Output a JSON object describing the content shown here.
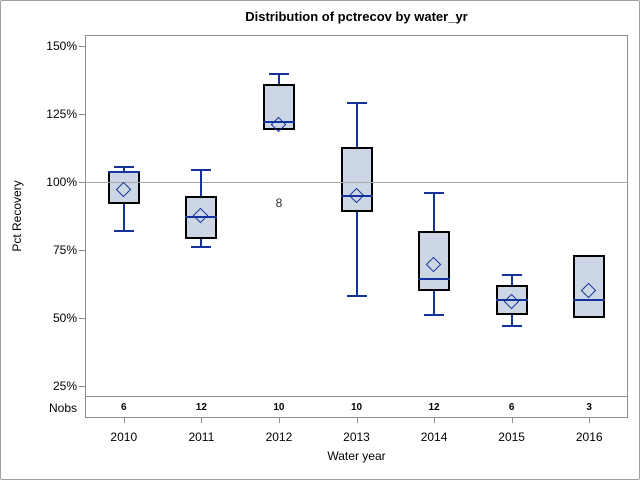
{
  "chart_data": {
    "type": "boxplot",
    "title": "Distribution of pctrecov by water_yr",
    "xlabel": "Water year",
    "ylabel": "Pct Recovery",
    "nobs_label": "Nobs",
    "categories": [
      "2010",
      "2011",
      "2012",
      "2013",
      "2014",
      "2015",
      "2016"
    ],
    "nobs": [
      "6",
      "12",
      "10",
      "10",
      "12",
      "6",
      "3"
    ],
    "yticks": [
      {
        "value": 150,
        "label": "150%"
      },
      {
        "value": 125,
        "label": "125%"
      },
      {
        "value": 100,
        "label": "100%"
      },
      {
        "value": 75,
        "label": "75%"
      },
      {
        "value": 50,
        "label": "50%"
      },
      {
        "value": 25,
        "label": "25%"
      }
    ],
    "ylim": [
      21,
      154
    ],
    "refline": 100,
    "legend": "none",
    "grid": "refline-only",
    "boxes": [
      {
        "category": "2010",
        "whisker_low": 82,
        "q1": 92,
        "median": 103.5,
        "q3": 104,
        "whisker_high": 105.5,
        "mean": 97
      },
      {
        "category": "2011",
        "whisker_low": 76,
        "q1": 79,
        "median": 87,
        "q3": 95,
        "whisker_high": 104.5,
        "mean": 87.5
      },
      {
        "category": "2012",
        "whisker_low": 119,
        "q1": 119,
        "median": 122,
        "q3": 136,
        "whisker_high": 139.5,
        "mean": 121,
        "outliers": [
          {
            "value": 92,
            "label": "8"
          }
        ]
      },
      {
        "category": "2013",
        "whisker_low": 58,
        "q1": 89,
        "median": 95,
        "q3": 113,
        "whisker_high": 129,
        "mean": 95
      },
      {
        "category": "2014",
        "whisker_low": 51,
        "q1": 60,
        "median": 64.5,
        "q3": 82,
        "whisker_high": 96,
        "mean": 69.5
      },
      {
        "category": "2015",
        "whisker_low": 47,
        "q1": 51,
        "median": 56.5,
        "q3": 62,
        "whisker_high": 66,
        "mean": 56
      },
      {
        "category": "2016",
        "whisker_low": 50,
        "q1": 50,
        "median": 56.5,
        "q3": 73,
        "whisker_high": 73,
        "mean": 60
      }
    ],
    "colors": {
      "box_fill": "#ccd6e4",
      "box_border": "#000000",
      "line_blue": "#14339c",
      "frame_gray": "#8e8e8e",
      "refline_gray": "#a8a8a8",
      "outer_border": "#9f9f9f",
      "background": "#ffffff"
    }
  }
}
